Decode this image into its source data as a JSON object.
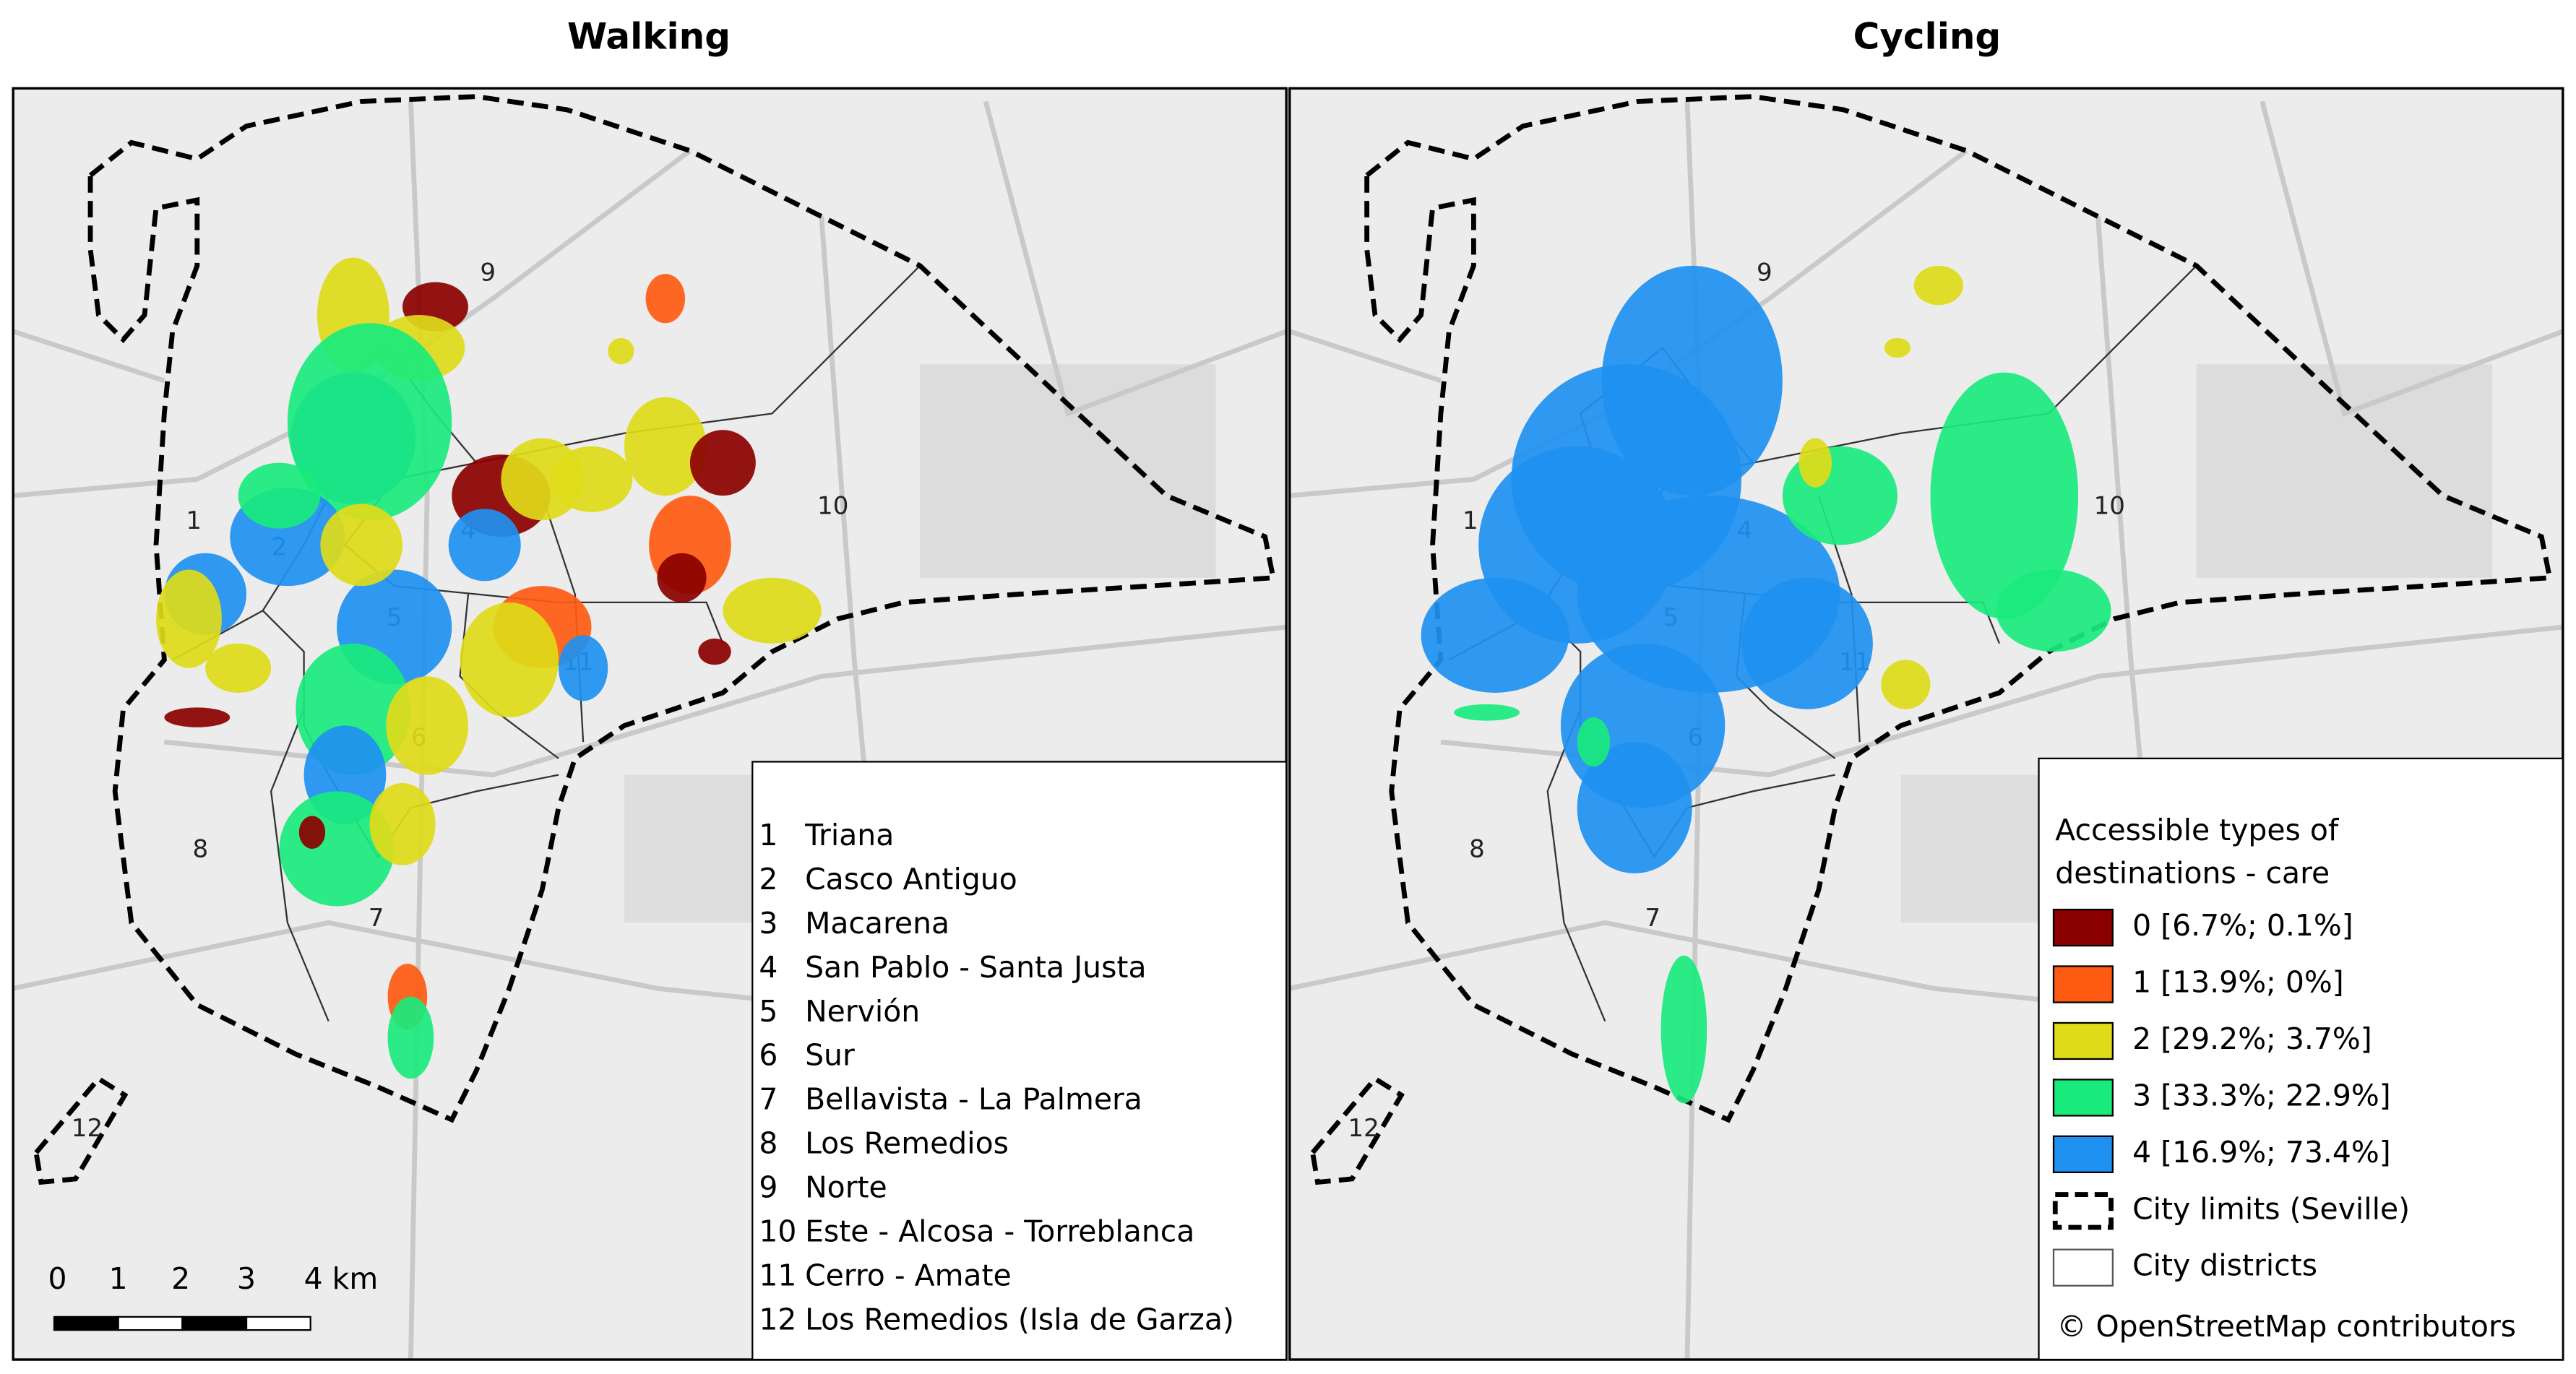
{
  "panels": [
    {
      "title": "Walking"
    },
    {
      "title": "Cycling"
    }
  ],
  "districts": [
    {
      "number": "1",
      "name": "Triana"
    },
    {
      "number": "2",
      "name": "Casco Antiguo"
    },
    {
      "number": "3",
      "name": "Macarena"
    },
    {
      "number": "4",
      "name": "San Pablo - Santa Justa"
    },
    {
      "number": "5",
      "name": "Nervión"
    },
    {
      "number": "6",
      "name": "Sur"
    },
    {
      "number": "7",
      "name": "Bellavista - La Palmera"
    },
    {
      "number": "8",
      "name": "Los Remedios"
    },
    {
      "number": "9",
      "name": "Norte"
    },
    {
      "number": "10",
      "name": "Este - Alcosa - Torreblanca"
    },
    {
      "number": "11",
      "name": "Cerro - Amate"
    },
    {
      "number": "12",
      "name": "Los Remedios (Isla de Garza)"
    }
  ],
  "scale_bar": [
    "0",
    "1",
    "2",
    "3",
    "4 km"
  ],
  "legend": {
    "title_lines": [
      "Accessible types of",
      "destinations - care"
    ],
    "items": [
      {
        "label": "0 [6.7%; 0.1%]",
        "color": "#8b0000"
      },
      {
        "label": "1 [13.9%; 0%]",
        "color": "#ff5a12"
      },
      {
        "label": "2 [29.2%; 3.7%]",
        "color": "#dedb19"
      },
      {
        "label": "3 [33.3%; 22.9%]",
        "color": "#19ea7c"
      },
      {
        "label": "4 [16.9%; 73.4%]",
        "color": "#1e90f0"
      }
    ],
    "city_limits": "City limits (Seville)",
    "city_districts": "City districts"
  },
  "attribution": "© OpenStreetMap contributors"
}
